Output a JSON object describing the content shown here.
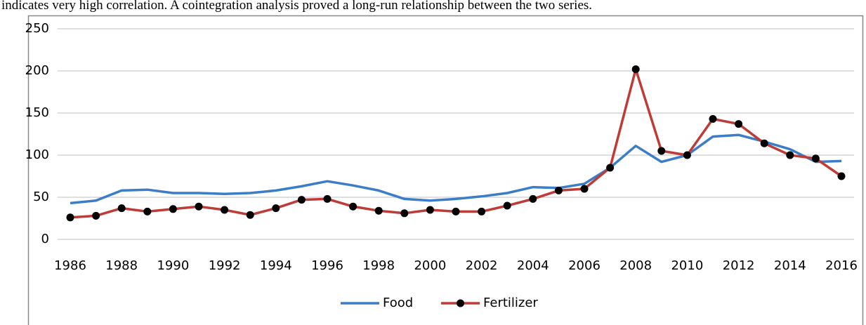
{
  "paragraph": "indicates very high correlation. A cointegration analysis proved a long-run relationship between the two series.",
  "chart_data": {
    "type": "line",
    "x": [
      1986,
      1987,
      1988,
      1989,
      1990,
      1991,
      1992,
      1993,
      1994,
      1995,
      1996,
      1997,
      1998,
      1999,
      2000,
      2001,
      2002,
      2003,
      2004,
      2005,
      2006,
      2007,
      2008,
      2009,
      2010,
      2011,
      2012,
      2013,
      2014,
      2015,
      2016
    ],
    "series": [
      {
        "name": "Food",
        "color": "#3b7dc8",
        "marker": false,
        "values": [
          43,
          46,
          58,
          59,
          55,
          55,
          54,
          55,
          58,
          63,
          69,
          64,
          58,
          48,
          46,
          48,
          51,
          55,
          62,
          61,
          66,
          85,
          111,
          92,
          100,
          122,
          124,
          116,
          107,
          92,
          93
        ]
      },
      {
        "name": "Fertilizer",
        "color": "#be3b37",
        "marker": true,
        "marker_color": "#000000",
        "values": [
          26,
          28,
          37,
          33,
          36,
          39,
          35,
          29,
          37,
          47,
          48,
          39,
          34,
          31,
          35,
          33,
          33,
          40,
          48,
          58,
          60,
          85,
          202,
          105,
          100,
          143,
          137,
          114,
          100,
          96,
          75
        ]
      }
    ],
    "xlim": [
      1986,
      2016
    ],
    "xticks": [
      1986,
      1988,
      1990,
      1992,
      1994,
      1996,
      1998,
      2000,
      2002,
      2004,
      2006,
      2008,
      2010,
      2012,
      2014,
      2016
    ],
    "ylim": [
      0,
      250
    ],
    "yticks": [
      0,
      50,
      100,
      150,
      200,
      250
    ],
    "grid": true,
    "legend": "bottom"
  }
}
